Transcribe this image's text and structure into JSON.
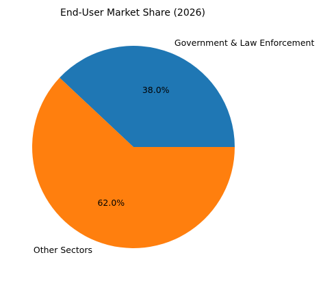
{
  "chart_data": {
    "type": "pie",
    "title": "End-User Market Share (2026)",
    "slices": [
      {
        "label": "Government & Law Enforcement",
        "value": 38.0,
        "pct_label": "38.0%",
        "color": "#1f77b4"
      },
      {
        "label": "Other Sectors",
        "value": 62.0,
        "pct_label": "62.0%",
        "color": "#ff7f0e"
      }
    ],
    "start_angle_deg": 0,
    "direction": "counterclockwise"
  }
}
